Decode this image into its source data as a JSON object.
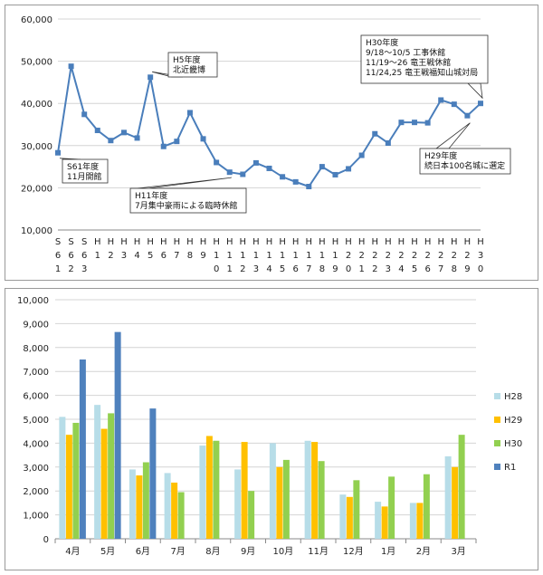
{
  "chart_data": [
    {
      "type": "line",
      "categories": [
        [
          "S",
          "6",
          "1"
        ],
        [
          "S",
          "6",
          "2"
        ],
        [
          "S",
          "6",
          "3"
        ],
        [
          "H",
          "1"
        ],
        [
          "H",
          "2"
        ],
        [
          "H",
          "3"
        ],
        [
          "H",
          "4"
        ],
        [
          "H",
          "5"
        ],
        [
          "H",
          "6"
        ],
        [
          "H",
          "7"
        ],
        [
          "H",
          "8"
        ],
        [
          "H",
          "9"
        ],
        [
          "H",
          "1",
          "0"
        ],
        [
          "H",
          "1",
          "1"
        ],
        [
          "H",
          "1",
          "2"
        ],
        [
          "H",
          "1",
          "3"
        ],
        [
          "H",
          "1",
          "4"
        ],
        [
          "H",
          "1",
          "5"
        ],
        [
          "H",
          "1",
          "6"
        ],
        [
          "H",
          "1",
          "7"
        ],
        [
          "H",
          "1",
          "8"
        ],
        [
          "H",
          "1",
          "9"
        ],
        [
          "H",
          "2",
          "0"
        ],
        [
          "H",
          "2",
          "1"
        ],
        [
          "H",
          "2",
          "2"
        ],
        [
          "H",
          "2",
          "3"
        ],
        [
          "H",
          "2",
          "4"
        ],
        [
          "H",
          "2",
          "5"
        ],
        [
          "H",
          "2",
          "6"
        ],
        [
          "H",
          "2",
          "7"
        ],
        [
          "H",
          "2",
          "8"
        ],
        [
          "H",
          "2",
          "9"
        ],
        [
          "H",
          "3",
          "0"
        ]
      ],
      "values": [
        28300,
        48800,
        37400,
        33600,
        31200,
        33100,
        31800,
        46200,
        29800,
        31000,
        37800,
        31600,
        26000,
        23700,
        23200,
        25900,
        24600,
        22600,
        21400,
        20300,
        25000,
        23100,
        24500,
        27700,
        32800,
        30600,
        35500,
        35500,
        35400,
        40800,
        39800,
        37100,
        40000
      ],
      "ylim": [
        10000,
        60000
      ],
      "yticks": [
        "10,000",
        "20,000",
        "30,000",
        "40,000",
        "50,000",
        "60,000"
      ],
      "ytick_values": [
        10000,
        20000,
        30000,
        40000,
        50000,
        60000
      ],
      "color": "#4a7ebb",
      "grid": "horizontal",
      "annotations": [
        {
          "index": 0,
          "lines": [
            "S61年度",
            "11月開館"
          ]
        },
        {
          "index": 7,
          "lines": [
            "H5年度",
            "北近畿博"
          ]
        },
        {
          "index": 13,
          "lines": [
            "H11年度",
            "7月集中豪雨による臨時休館"
          ]
        },
        {
          "index": 32,
          "lines": [
            "H30年度",
            "9/18～10/5  工事休館",
            "11/19～26  竜王戦休館",
            "11/24,25  竜王戦福知山城対局"
          ]
        },
        {
          "index": 31,
          "lines": [
            "H29年度",
            "続日本100名城に選定"
          ]
        }
      ]
    },
    {
      "type": "bar",
      "categories": [
        "4月",
        "5月",
        "6月",
        "7月",
        "8月",
        "9月",
        "10月",
        "11月",
        "12月",
        "1月",
        "2月",
        "3月"
      ],
      "series": [
        {
          "name": "H28",
          "color": "#b7dde8",
          "values": [
            5100,
            5600,
            2900,
            2750,
            3900,
            2900,
            4000,
            4100,
            1850,
            1550,
            1500,
            3450
          ]
        },
        {
          "name": "H29",
          "color": "#ffc000",
          "values": [
            4350,
            4600,
            2650,
            2350,
            4300,
            4050,
            3000,
            4050,
            1750,
            1350,
            1500,
            3000
          ]
        },
        {
          "name": "H30",
          "color": "#92d050",
          "values": [
            4850,
            5250,
            3200,
            1950,
            4100,
            2000,
            3300,
            3250,
            2450,
            2600,
            2700,
            4350
          ]
        },
        {
          "name": "R1",
          "color": "#4f81bd",
          "values": [
            7500,
            8650,
            5450,
            null,
            null,
            null,
            null,
            null,
            null,
            null,
            null,
            null
          ]
        }
      ],
      "ylim": [
        0,
        10000
      ],
      "yticks": [
        "0",
        "1,000",
        "2,000",
        "3,000",
        "4,000",
        "5,000",
        "6,000",
        "7,000",
        "8,000",
        "9,000",
        "10,000"
      ],
      "ytick_values": [
        0,
        1000,
        2000,
        3000,
        4000,
        5000,
        6000,
        7000,
        8000,
        9000,
        10000
      ],
      "grid": "horizontal",
      "legend": "right"
    }
  ]
}
